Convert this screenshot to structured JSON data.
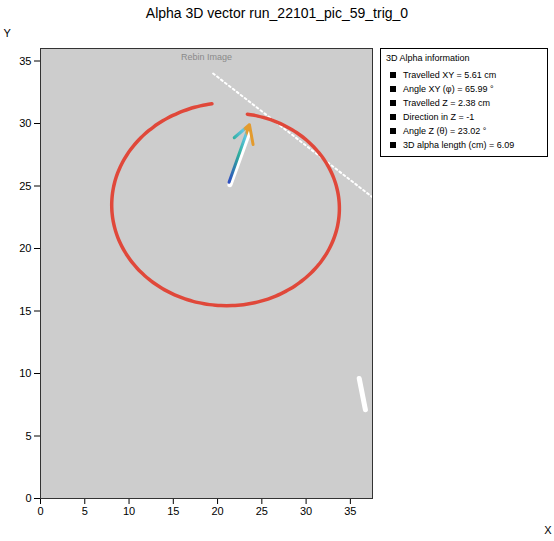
{
  "chart_data": {
    "type": "image",
    "title": "Alpha 3D vector run_22101_pic_59_trig_0",
    "image_label": "Rebin Image",
    "x_label": "X",
    "y_label": "Y",
    "xlim": [
      0,
      37.5
    ],
    "ylim": [
      0,
      36
    ],
    "xticks": [
      0,
      5,
      10,
      15,
      20,
      25,
      30,
      35
    ],
    "yticks": [
      0,
      5,
      10,
      15,
      20,
      25,
      30,
      35
    ],
    "tracks": [
      {
        "x": [
          19.5,
          37.5
        ],
        "y": [
          34.0,
          24.1
        ],
        "line_style": "dotted"
      },
      {
        "x": [
          21.4,
          23.5
        ],
        "y": [
          25.1,
          29.2
        ],
        "line_style": "solid"
      },
      {
        "x": [
          36.0,
          36.7
        ],
        "y": [
          9.6,
          7.1
        ],
        "line_style": "solid"
      }
    ],
    "arrow": {
      "x": [
        21.3,
        23.6
      ],
      "y": [
        25.3,
        29.9
      ]
    },
    "legend": "right",
    "legend_title": "3D Alpha information",
    "legend_entries": [
      "Travelled XY = 5.61 cm",
      "Angle XY (φ) = 65.99 °",
      "Travelled Z = 2.38 cm",
      "Direction in Z = -1",
      "Angle Z (θ) = 23.02 °",
      "3D alpha length (cm) = 6.09"
    ]
  }
}
